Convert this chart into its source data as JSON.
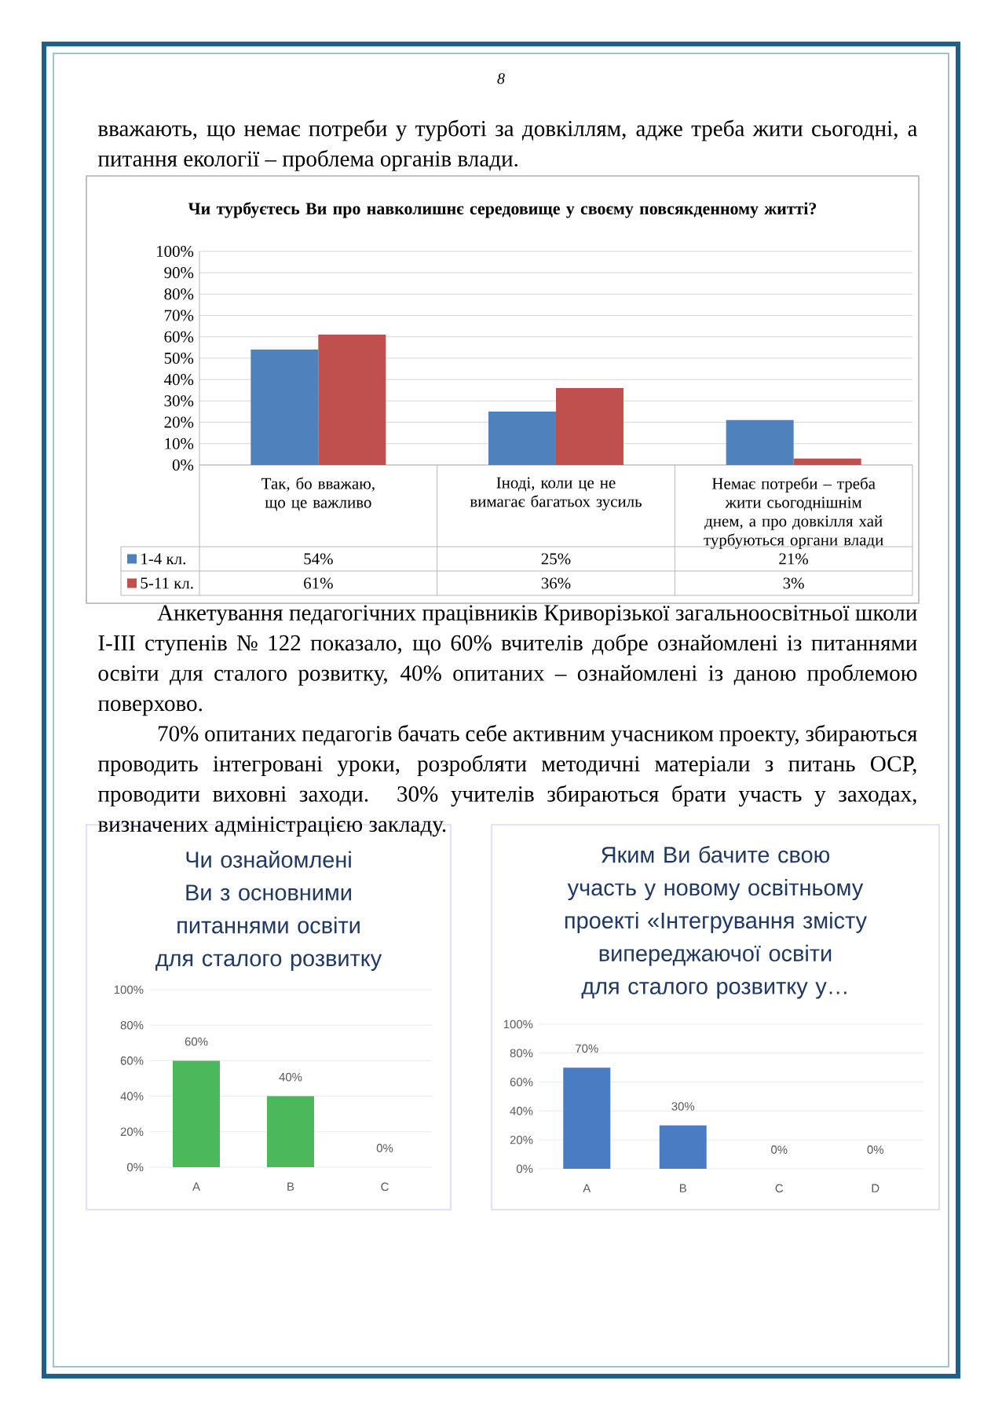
{
  "chart_data": [
    {
      "type": "bar",
      "title": "Чи турбуєтесь Ви про навколишнє середовище у своєму повсякденному житті?",
      "categories": [
        "Так, бо вважаю, що це важливо",
        "Іноді, коли це не вимагає багатьох зусиль",
        "Немає потреби – треба жити сьогоднішнім днем, а про довкілля хай турбуються органи влади"
      ],
      "series": [
        {
          "name": "1-4 кл.",
          "color": "#4f81bd",
          "values": [
            54,
            25,
            21
          ],
          "value_labels": [
            "54%",
            "25%",
            "21%"
          ]
        },
        {
          "name": "5-11 кл.",
          "color": "#c0504d",
          "values": [
            61,
            36,
            3
          ],
          "value_labels": [
            "61%",
            "36%",
            "3%"
          ]
        }
      ],
      "ylim": [
        0,
        100
      ],
      "yticks": [
        {
          "value": 0,
          "label": "0%"
        },
        {
          "value": 10,
          "label": "10%"
        },
        {
          "value": 20,
          "label": "20%"
        },
        {
          "value": 30,
          "label": "30%"
        },
        {
          "value": 40,
          "label": "40%"
        },
        {
          "value": 50,
          "label": "50%"
        },
        {
          "value": 60,
          "label": "60%"
        },
        {
          "value": 70,
          "label": "70%"
        },
        {
          "value": 80,
          "label": "80%"
        },
        {
          "value": 90,
          "label": "90%"
        },
        {
          "value": 100,
          "label": "100%"
        }
      ],
      "grid": "y",
      "legend": "bottom",
      "annotations": [
        "8",
        "вважають, що немає потреби у турботі за довкіллям, адже треба жити сьогодні, а питання екології – проблема органів влади.",
        "Анкетування педагогічних працівників Криворізької загальноосвітньої школи I-III ступенів № 122 показало, що 60% вчителів добре ознайомлені із питаннями освіти для сталого розвитку, 40% опитаних – ознайомлені із даною проблемою поверхово.",
        "70% опитаних педагогів бачать себе активним учасником проекту, збираються проводить інтегровані уроки, розробляти методичні матеріали з питань ОСР, проводити виховні заходи. 30% учителів збираються брати участь у заходах, визначених адміністрацією закладу."
      ]
    },
    {
      "type": "bar",
      "title": "Чи ознайомлені Ви з основними питаннями освіти для сталого розвитку",
      "categories": [
        "A",
        "B",
        "C"
      ],
      "values": [
        60,
        40,
        0
      ],
      "value_labels": [
        "60%",
        "40%",
        "0%"
      ],
      "color": "#4cb85c",
      "ylim": [
        0,
        100
      ],
      "yticks": [
        {
          "value": 0,
          "label": "0%"
        },
        {
          "value": 20,
          "label": "20%"
        },
        {
          "value": 40,
          "label": "40%"
        },
        {
          "value": 60,
          "label": "60%"
        },
        {
          "value": 80,
          "label": "80%"
        },
        {
          "value": 100,
          "label": "100%"
        }
      ],
      "grid": "y"
    },
    {
      "type": "bar",
      "title": "Яким Ви бачите свою участь у новому освітньому проекті «Інтегрування змісту випереджаючої освіти для сталого розвитку у…",
      "categories": [
        "A",
        "B",
        "C",
        "D"
      ],
      "values": [
        70,
        30,
        0,
        0
      ],
      "value_labels": [
        "70%",
        "30%",
        "0%",
        "0%"
      ],
      "color": "#4a7cc4",
      "ylim": [
        0,
        100
      ],
      "yticks": [
        {
          "value": 0,
          "label": "0%"
        },
        {
          "value": 20,
          "label": "20%"
        },
        {
          "value": 40,
          "label": "40%"
        },
        {
          "value": 60,
          "label": "60%"
        },
        {
          "value": 80,
          "label": "80%"
        },
        {
          "value": 100,
          "label": "100%"
        }
      ],
      "grid": "y"
    }
  ]
}
